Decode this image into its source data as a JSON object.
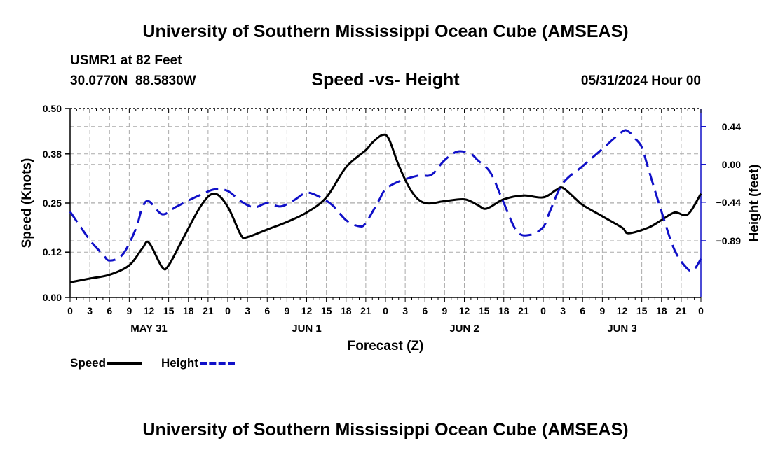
{
  "main_title": "University of Southern Mississippi Ocean Cube (AMSEAS)",
  "footer_title": "University of Southern Mississippi Ocean Cube (AMSEAS)",
  "station": "USMR1 at 82 Feet",
  "coords": "30.0770N  88.5830W",
  "datetime": "05/31/2024 Hour 00",
  "legend": {
    "speed": "Speed",
    "height": "Height"
  },
  "colors": {
    "speed": "#000000",
    "height": "#1010c8",
    "grid": "#aaaaaa"
  },
  "chart_data": {
    "type": "line",
    "title": "Speed -vs- Height",
    "xlabel": "Forecast (Z)",
    "ylabel": "Speed (Knots)",
    "y2label": "Height (feet)",
    "xlim": [
      0,
      96
    ],
    "ylim": [
      0,
      0.5
    ],
    "y2lim": [
      -1.55,
      0.65
    ],
    "x_ticks": [
      0,
      3,
      6,
      9,
      12,
      15,
      18,
      21,
      24,
      27,
      30,
      33,
      36,
      39,
      42,
      45,
      48,
      51,
      54,
      57,
      60,
      63,
      66,
      69,
      72,
      75,
      78,
      81,
      84,
      87,
      90,
      93,
      96
    ],
    "x_tick_labels": [
      "0",
      "3",
      "6",
      "9",
      "12",
      "15",
      "18",
      "21",
      "0",
      "3",
      "6",
      "9",
      "12",
      "15",
      "18",
      "21",
      "0",
      "3",
      "6",
      "9",
      "12",
      "15",
      "18",
      "21",
      "0",
      "3",
      "6",
      "9",
      "12",
      "15",
      "18",
      "21",
      "0"
    ],
    "date_labels": [
      {
        "x": 12,
        "label": "MAY 31"
      },
      {
        "x": 36,
        "label": "JUN 1"
      },
      {
        "x": 60,
        "label": "JUN 2"
      },
      {
        "x": 84,
        "label": "JUN 3"
      }
    ],
    "y_ticks": [
      0.0,
      0.12,
      0.25,
      0.38,
      0.5
    ],
    "y_tick_labels": [
      "0.00",
      "0.12",
      "0.25",
      "0.38",
      "0.50"
    ],
    "y2_ticks": [
      0.44,
      0.0,
      -0.44,
      -0.89
    ],
    "y2_tick_labels": [
      "0.44",
      "0.00",
      "−0.44",
      "−0.89"
    ],
    "grid": true,
    "series": [
      {
        "name": "Speed",
        "axis": "left",
        "style": "solid",
        "x": [
          0,
          3,
          6,
          9,
          11,
          12,
          14,
          15,
          17,
          20,
          22,
          24,
          26,
          27,
          30,
          33,
          36,
          39,
          42,
          45,
          46,
          47.5,
          48.5,
          50,
          52,
          54,
          57,
          60,
          62,
          63,
          64,
          66,
          69,
          72,
          74,
          75,
          77,
          78,
          81,
          84,
          85,
          88,
          90,
          92,
          94,
          96
        ],
        "values": [
          0.04,
          0.05,
          0.06,
          0.085,
          0.13,
          0.145,
          0.08,
          0.085,
          0.15,
          0.245,
          0.275,
          0.24,
          0.165,
          0.16,
          0.18,
          0.2,
          0.225,
          0.265,
          0.345,
          0.39,
          0.41,
          0.43,
          0.42,
          0.35,
          0.28,
          0.25,
          0.255,
          0.26,
          0.245,
          0.235,
          0.24,
          0.26,
          0.27,
          0.265,
          0.285,
          0.29,
          0.26,
          0.245,
          0.215,
          0.185,
          0.17,
          0.185,
          0.205,
          0.225,
          0.22,
          0.275
        ]
      },
      {
        "name": "Height",
        "axis": "right",
        "style": "dashed",
        "x": [
          0,
          3,
          5,
          6,
          8,
          10,
          11,
          12,
          14,
          16,
          18,
          20,
          22,
          24,
          26,
          28,
          30,
          32,
          34,
          36,
          38,
          40,
          42,
          44,
          45,
          47,
          48,
          50,
          53,
          55,
          57,
          59,
          61,
          62,
          64,
          66,
          68,
          70,
          72,
          73,
          75,
          78,
          81,
          84,
          85,
          86,
          87,
          88,
          90,
          92,
          94,
          95,
          96
        ],
        "values": [
          -0.55,
          -0.88,
          -1.05,
          -1.12,
          -1.05,
          -0.75,
          -0.5,
          -0.43,
          -0.58,
          -0.5,
          -0.42,
          -0.35,
          -0.29,
          -0.31,
          -0.43,
          -0.5,
          -0.45,
          -0.49,
          -0.42,
          -0.33,
          -0.38,
          -0.48,
          -0.65,
          -0.72,
          -0.68,
          -0.42,
          -0.29,
          -0.2,
          -0.13,
          -0.12,
          0.05,
          0.15,
          0.12,
          0.05,
          -0.1,
          -0.45,
          -0.78,
          -0.82,
          -0.73,
          -0.55,
          -0.22,
          -0.02,
          0.18,
          0.38,
          0.38,
          0.3,
          0.2,
          -0.05,
          -0.55,
          -1.0,
          -1.22,
          -1.22,
          -1.1
        ]
      }
    ]
  }
}
